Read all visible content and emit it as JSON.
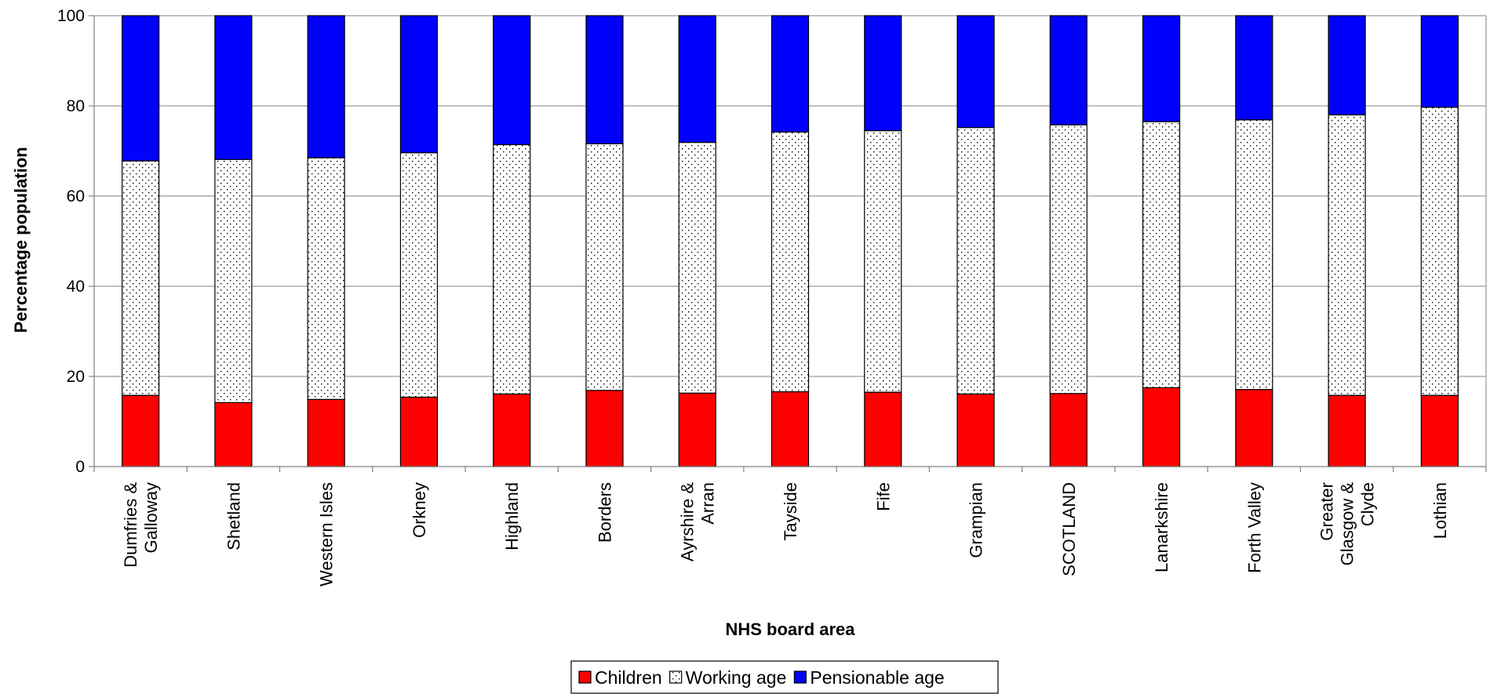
{
  "chart_data": {
    "type": "bar",
    "stacked": true,
    "title": "",
    "xlabel": "NHS board area",
    "ylabel": "Percentage population",
    "ylim": [
      0,
      100
    ],
    "yticks": [
      0,
      20,
      40,
      60,
      80,
      100
    ],
    "grid": true,
    "legend_position": "bottom",
    "categories": [
      "Dumfries & Galloway",
      "Shetland",
      "Western Isles",
      "Orkney",
      "Highland",
      "Borders",
      "Ayrshire & Arran",
      "Tayside",
      "Fife",
      "Grampian",
      "SCOTLAND",
      "Lanarkshire",
      "Forth Valley",
      "Greater Glasgow & Clyde",
      "Lothian"
    ],
    "category_lines": [
      [
        "Dumfries &",
        "Galloway"
      ],
      [
        "Shetland"
      ],
      [
        "Western Isles"
      ],
      [
        "Orkney"
      ],
      [
        "Highland"
      ],
      [
        "Borders"
      ],
      [
        "Ayrshire &",
        "Arran"
      ],
      [
        "Tayside"
      ],
      [
        "Fife"
      ],
      [
        "Grampian"
      ],
      [
        "SCOTLAND"
      ],
      [
        "Lanarkshire"
      ],
      [
        "Forth Valley"
      ],
      [
        "Greater",
        "Glasgow &",
        "Clyde"
      ],
      [
        "Lothian"
      ]
    ],
    "series": [
      {
        "name": "Children",
        "color": "#ff0000",
        "pattern": "solid",
        "values": [
          15.8,
          14.2,
          14.9,
          15.4,
          16.1,
          16.9,
          16.3,
          16.6,
          16.5,
          16.1,
          16.2,
          17.5,
          17.1,
          15.8,
          15.8
        ]
      },
      {
        "name": "Working age",
        "color": "#ffffff",
        "pattern": "dotted",
        "values": [
          52.0,
          53.9,
          53.6,
          54.2,
          55.3,
          54.7,
          55.6,
          57.6,
          58.0,
          59.1,
          59.6,
          59.0,
          59.8,
          62.2,
          63.9
        ]
      },
      {
        "name": "Pensionable age",
        "color": "#0000ff",
        "pattern": "solid",
        "values": [
          32.2,
          31.9,
          31.5,
          30.4,
          28.6,
          28.4,
          28.1,
          25.8,
          25.5,
          24.8,
          24.2,
          23.5,
          23.1,
          22.0,
          20.3
        ]
      }
    ]
  }
}
